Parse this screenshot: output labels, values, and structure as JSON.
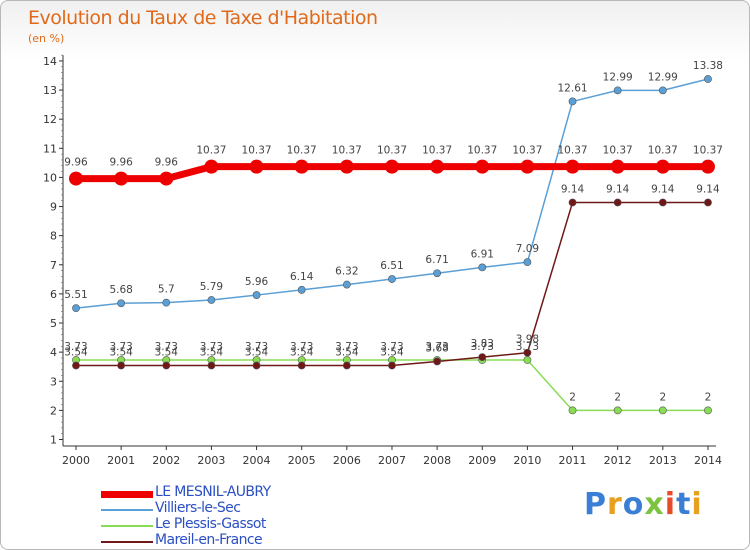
{
  "title": "Evolution du Taux de Taxe d'Habitation",
  "subtitle": "(en %)",
  "logo": {
    "letters": [
      {
        "char": "P",
        "color": "#3a7fd5"
      },
      {
        "char": "r",
        "color": "#e8a020"
      },
      {
        "char": "o",
        "color": "#3a7fd5"
      },
      {
        "char": "x",
        "color": "#7cc440"
      },
      {
        "char": "i",
        "color": "#e84a2a"
      },
      {
        "char": "t",
        "color": "#3a7fd5"
      },
      {
        "char": "i",
        "color": "#e8a020"
      }
    ]
  },
  "chart_data": {
    "type": "line",
    "x": [
      "2000",
      "2001",
      "2002",
      "2003",
      "2004",
      "2005",
      "2006",
      "2007",
      "2008",
      "2009",
      "2010",
      "2011",
      "2012",
      "2013",
      "2014"
    ],
    "yticks": [
      "1",
      "2",
      "3",
      "4",
      "5",
      "6",
      "7",
      "8",
      "9",
      "10",
      "11",
      "12",
      "13",
      "14"
    ],
    "ylim": [
      0.6,
      14.2
    ],
    "grid": false,
    "legend_position": "bottom-left",
    "series": [
      {
        "name": "LE MESNIL-AUBRY",
        "color": "#ee0000",
        "values": [
          9.96,
          9.96,
          9.96,
          10.37,
          10.37,
          10.37,
          10.37,
          10.37,
          10.37,
          10.37,
          10.37,
          10.37,
          10.37,
          10.37,
          10.37
        ],
        "labels": [
          "9.96",
          "9.96",
          "9.96",
          "10.37",
          "10.37",
          "10.37",
          "10.37",
          "10.37",
          "10.37",
          "10.37",
          "10.37",
          "10.37",
          "10.37",
          "10.37",
          "10.37"
        ]
      },
      {
        "name": "Villiers-le-Sec",
        "color": "#5a9fd6",
        "values": [
          5.51,
          5.68,
          5.7,
          5.79,
          5.96,
          6.14,
          6.32,
          6.51,
          6.71,
          6.91,
          7.09,
          12.61,
          12.99,
          12.99,
          13.38
        ],
        "labels": [
          "5.51",
          "5.68",
          "5.7",
          "5.79",
          "5.96",
          "6.14",
          "6.32",
          "6.51",
          "6.71",
          "6.91",
          "7.09",
          "12.61",
          "12.99",
          "12.99",
          "13.38"
        ]
      },
      {
        "name": "Le Plessis-Gassot",
        "color": "#88dd55",
        "values": [
          3.73,
          3.73,
          3.73,
          3.73,
          3.73,
          3.73,
          3.73,
          3.73,
          3.73,
          3.73,
          3.73,
          2,
          2,
          2,
          2
        ],
        "labels": [
          "3.73",
          "3.73",
          "3.73",
          "3.73",
          "3.73",
          "3.73",
          "3.73",
          "3.73",
          "3.73",
          "3.73",
          "3.73",
          "2",
          "2",
          "2",
          "2"
        ]
      },
      {
        "name": "Mareil-en-France",
        "color": "#701818",
        "values": [
          3.54,
          3.54,
          3.54,
          3.54,
          3.54,
          3.54,
          3.54,
          3.54,
          3.68,
          3.83,
          3.98,
          9.14,
          9.14,
          9.14,
          9.14
        ],
        "labels": [
          "3.54",
          "3.54",
          "3.54",
          "3.54",
          "3.54",
          "3.54",
          "3.54",
          "3.54",
          "3.68",
          "3.83",
          "3.98",
          "9.14",
          "9.14",
          "9.14",
          "9.14"
        ]
      }
    ]
  }
}
